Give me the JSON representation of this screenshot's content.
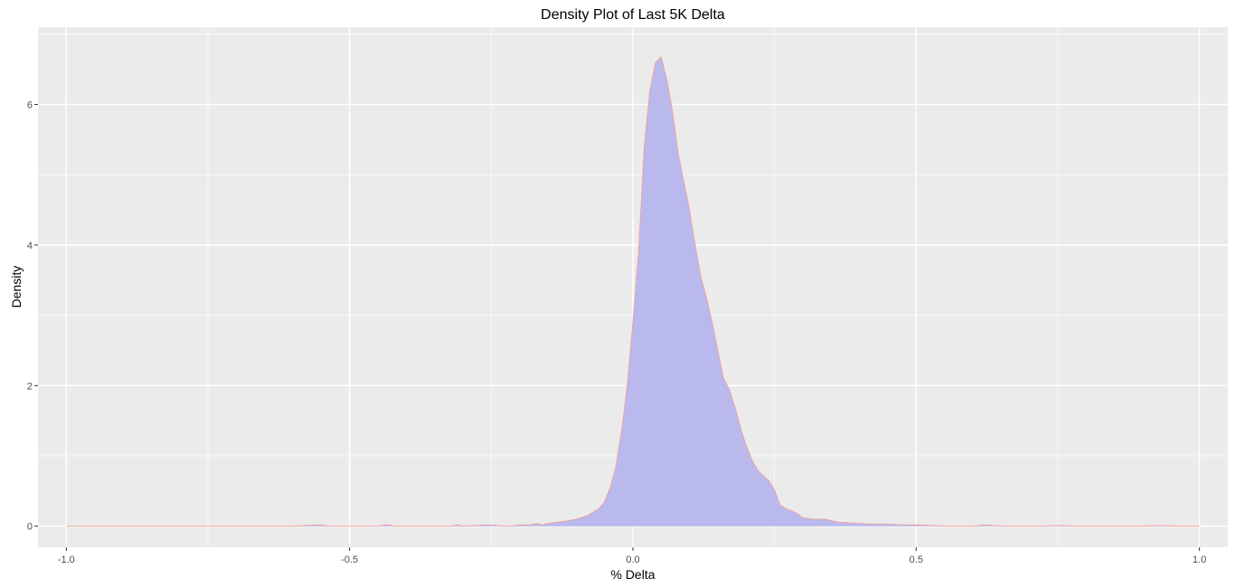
{
  "chart_data": {
    "type": "area",
    "title": "Density Plot of Last 5K Delta",
    "xlabel": "% Delta",
    "ylabel": "Density",
    "xlim": [
      -1.05,
      1.05
    ],
    "ylim": [
      -0.3,
      7.1
    ],
    "x_ticks": [
      -1.0,
      -0.5,
      0.0,
      0.5,
      1.0
    ],
    "x_tick_labels": [
      "-1.0",
      "-0.5",
      "0.0",
      "0.5",
      "1.0"
    ],
    "y_ticks": [
      0,
      2,
      4,
      6
    ],
    "y_tick_labels": [
      "0",
      "2",
      "4",
      "6"
    ],
    "grid": true,
    "legend": "none",
    "colors": {
      "panel_background": "#ebebeb",
      "grid_major": "#ffffff",
      "fill": "#b9b9ee",
      "line": "#f4a09a"
    },
    "series": [
      {
        "x": [
          -1.0,
          -0.6,
          -0.56,
          -0.55,
          -0.54,
          -0.45,
          -0.44,
          -0.43,
          -0.42,
          -0.32,
          -0.31,
          -0.3,
          -0.26,
          -0.25,
          -0.22,
          -0.2,
          -0.18,
          -0.17,
          -0.16,
          -0.15,
          -0.14,
          -0.12,
          -0.1,
          -0.08,
          -0.06,
          -0.05,
          -0.04,
          -0.03,
          -0.02,
          -0.01,
          0.0,
          0.01,
          0.02,
          0.03,
          0.04,
          0.05,
          0.06,
          0.07,
          0.08,
          0.09,
          0.1,
          0.11,
          0.12,
          0.13,
          0.14,
          0.15,
          0.16,
          0.17,
          0.18,
          0.19,
          0.2,
          0.21,
          0.22,
          0.23,
          0.24,
          0.25,
          0.26,
          0.27,
          0.28,
          0.29,
          0.3,
          0.32,
          0.34,
          0.36,
          0.38,
          0.4,
          0.42,
          0.45,
          0.48,
          0.5,
          0.53,
          0.55,
          0.58,
          0.6,
          0.62,
          0.64,
          0.66,
          0.68,
          0.7,
          0.72,
          0.74,
          0.76,
          0.78,
          0.8,
          0.82,
          0.9,
          0.92,
          0.94,
          0.96,
          1.0
        ],
        "y": [
          0.0,
          0.0,
          0.02,
          0.02,
          0.0,
          0.0,
          0.02,
          0.02,
          0.0,
          0.0,
          0.02,
          0.0,
          0.02,
          0.02,
          0.0,
          0.02,
          0.02,
          0.04,
          0.02,
          0.04,
          0.05,
          0.07,
          0.1,
          0.15,
          0.25,
          0.35,
          0.55,
          0.85,
          1.35,
          2.0,
          2.9,
          3.9,
          5.4,
          6.2,
          6.6,
          6.68,
          6.35,
          5.9,
          5.3,
          4.9,
          4.5,
          4.0,
          3.55,
          3.25,
          2.9,
          2.5,
          2.1,
          1.95,
          1.7,
          1.4,
          1.15,
          0.95,
          0.8,
          0.72,
          0.65,
          0.52,
          0.3,
          0.25,
          0.22,
          0.18,
          0.12,
          0.1,
          0.1,
          0.06,
          0.05,
          0.04,
          0.03,
          0.03,
          0.02,
          0.02,
          0.01,
          0.0,
          0.0,
          0.0,
          0.02,
          0.01,
          0.0,
          0.0,
          0.0,
          0.0,
          0.01,
          0.01,
          0.0,
          0.0,
          0.0,
          0.0,
          0.01,
          0.01,
          0.0,
          0.0
        ]
      }
    ]
  }
}
